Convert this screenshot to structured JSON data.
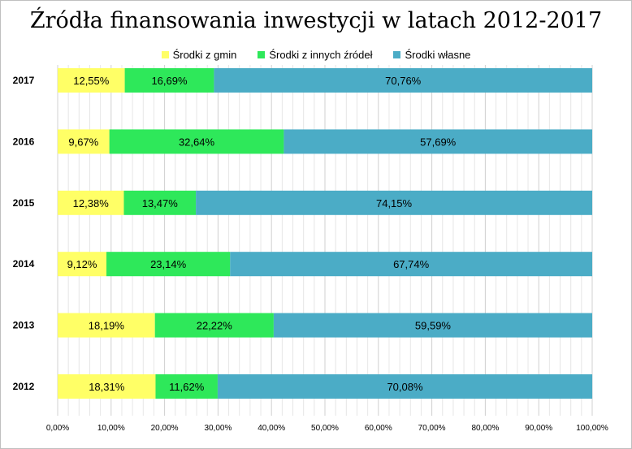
{
  "chart_data": {
    "type": "bar",
    "orientation": "horizontal",
    "stacked": "percent",
    "title": "Źródła finansowania inwestycji w latach 2012-2017",
    "categories": [
      "2017",
      "2016",
      "2015",
      "2014",
      "2013",
      "2012"
    ],
    "series": [
      {
        "name": "Środki z gmin",
        "color": "#ffff66",
        "values": [
          12.55,
          9.67,
          12.38,
          9.12,
          18.19,
          18.31
        ],
        "labels": [
          "12,55%",
          "9,67%",
          "12,38%",
          "9,12%",
          "18,19%",
          "18,31%"
        ]
      },
      {
        "name": "Środki z innych źródeł",
        "color": "#2ee85a",
        "values": [
          16.69,
          32.64,
          13.47,
          23.14,
          22.22,
          11.62
        ],
        "labels": [
          "16,69%",
          "32,64%",
          "13,47%",
          "23,14%",
          "22,22%",
          "11,62%"
        ]
      },
      {
        "name": "Środki własne",
        "color": "#4bacc6",
        "values": [
          70.76,
          57.69,
          74.15,
          67.74,
          59.59,
          70.08
        ],
        "labels": [
          "70,76%",
          "57,69%",
          "74,15%",
          "67,74%",
          "59,59%",
          "70,08%"
        ]
      }
    ],
    "xlim": [
      0,
      100
    ],
    "xticks": [
      0,
      10,
      20,
      30,
      40,
      50,
      60,
      70,
      80,
      90,
      100
    ],
    "xtick_labels": [
      "0,00%",
      "10,00%",
      "20,00%",
      "30,00%",
      "40,00%",
      "50,00%",
      "60,00%",
      "70,00%",
      "80,00%",
      "90,00%",
      "100,00%"
    ],
    "minor_gridlines": "every 2%",
    "legend": "top",
    "grid": true,
    "xlabel": "",
    "ylabel": ""
  }
}
